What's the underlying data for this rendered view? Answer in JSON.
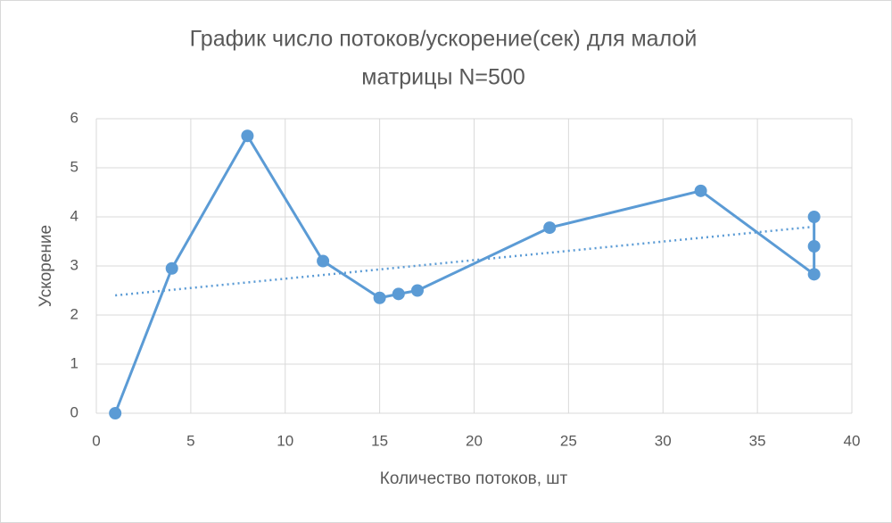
{
  "chart_data": {
    "type": "scatter-line",
    "title": [
      "График число потоков/ускорение(сек) для малой",
      "матрицы N=500"
    ],
    "x_label": "Количество потоков, шт",
    "y_label": "Ускорение",
    "series": [
      {
        "color": "#5b9bd5",
        "x": [
          1,
          4,
          8,
          12,
          15,
          16,
          17,
          24,
          32,
          38,
          38,
          38
        ],
        "values": [
          0,
          2.95,
          5.65,
          3.1,
          2.35,
          2.43,
          2.5,
          3.78,
          4.53,
          2.83,
          3.4,
          4.0
        ]
      }
    ],
    "trendline": {
      "color": "#5b9bd5",
      "style": "dotted",
      "x": [
        1,
        38
      ],
      "values": [
        2.4,
        3.8
      ]
    },
    "xlim": [
      0,
      40
    ],
    "xticks": [
      0,
      5,
      10,
      15,
      20,
      25,
      30,
      35,
      40
    ],
    "ylim": [
      0,
      6
    ],
    "yticks": [
      0,
      1,
      2,
      3,
      4,
      5,
      6
    ],
    "grid": true
  }
}
